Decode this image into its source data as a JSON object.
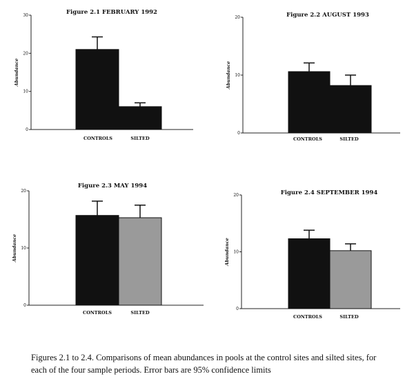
{
  "chart_data": [
    {
      "type": "bar",
      "title": "Figure 2.1   FEBRUARY 1992",
      "ylabel": "Abundance",
      "ylim": [
        0,
        30
      ],
      "yticks": [
        "0",
        "10",
        "20",
        "30"
      ],
      "categories": [
        "CONTROLS",
        "SILTED"
      ],
      "values": [
        21,
        6
      ],
      "error_upper": [
        24.3,
        7.0
      ],
      "bar_colors": [
        "#111111",
        "#111111"
      ]
    },
    {
      "type": "bar",
      "title": "Figure 2.2   AUGUST 1993",
      "ylabel": "Abundance",
      "ylim": [
        0,
        20
      ],
      "yticks": [
        "0",
        "10",
        "20"
      ],
      "categories": [
        "CONTROLS",
        "SILTED"
      ],
      "values": [
        10.6,
        8.2
      ],
      "error_upper": [
        12.1,
        10.0
      ],
      "bar_colors": [
        "#111111",
        "#111111"
      ]
    },
    {
      "type": "bar",
      "title": "Figure 2.3   MAY 1994",
      "ylabel": "Abundance",
      "ylim": [
        0,
        20
      ],
      "yticks": [
        "0",
        "10",
        "20"
      ],
      "categories": [
        "CONTROLS",
        "SILTED"
      ],
      "values": [
        15.7,
        15.3
      ],
      "error_upper": [
        18.2,
        17.5
      ],
      "bar_colors": [
        "#111111",
        "#9a9a9a"
      ]
    },
    {
      "type": "bar",
      "title": "Figure 2.4   SEPTEMBER 1994",
      "ylabel": "Abundance",
      "ylim": [
        0,
        20
      ],
      "yticks": [
        "0",
        "10",
        "20"
      ],
      "categories": [
        "CONTROLS",
        "SILTED"
      ],
      "values": [
        12.3,
        10.2
      ],
      "error_upper": [
        13.8,
        11.4
      ],
      "bar_colors": [
        "#111111",
        "#9a9a9a"
      ]
    }
  ],
  "caption": "Figures 2.1 to 2.4.  Comparisons of mean abundances in pools at the control sites and silted sites, for each of the four sample periods. Error bars are 95% confidence limits"
}
